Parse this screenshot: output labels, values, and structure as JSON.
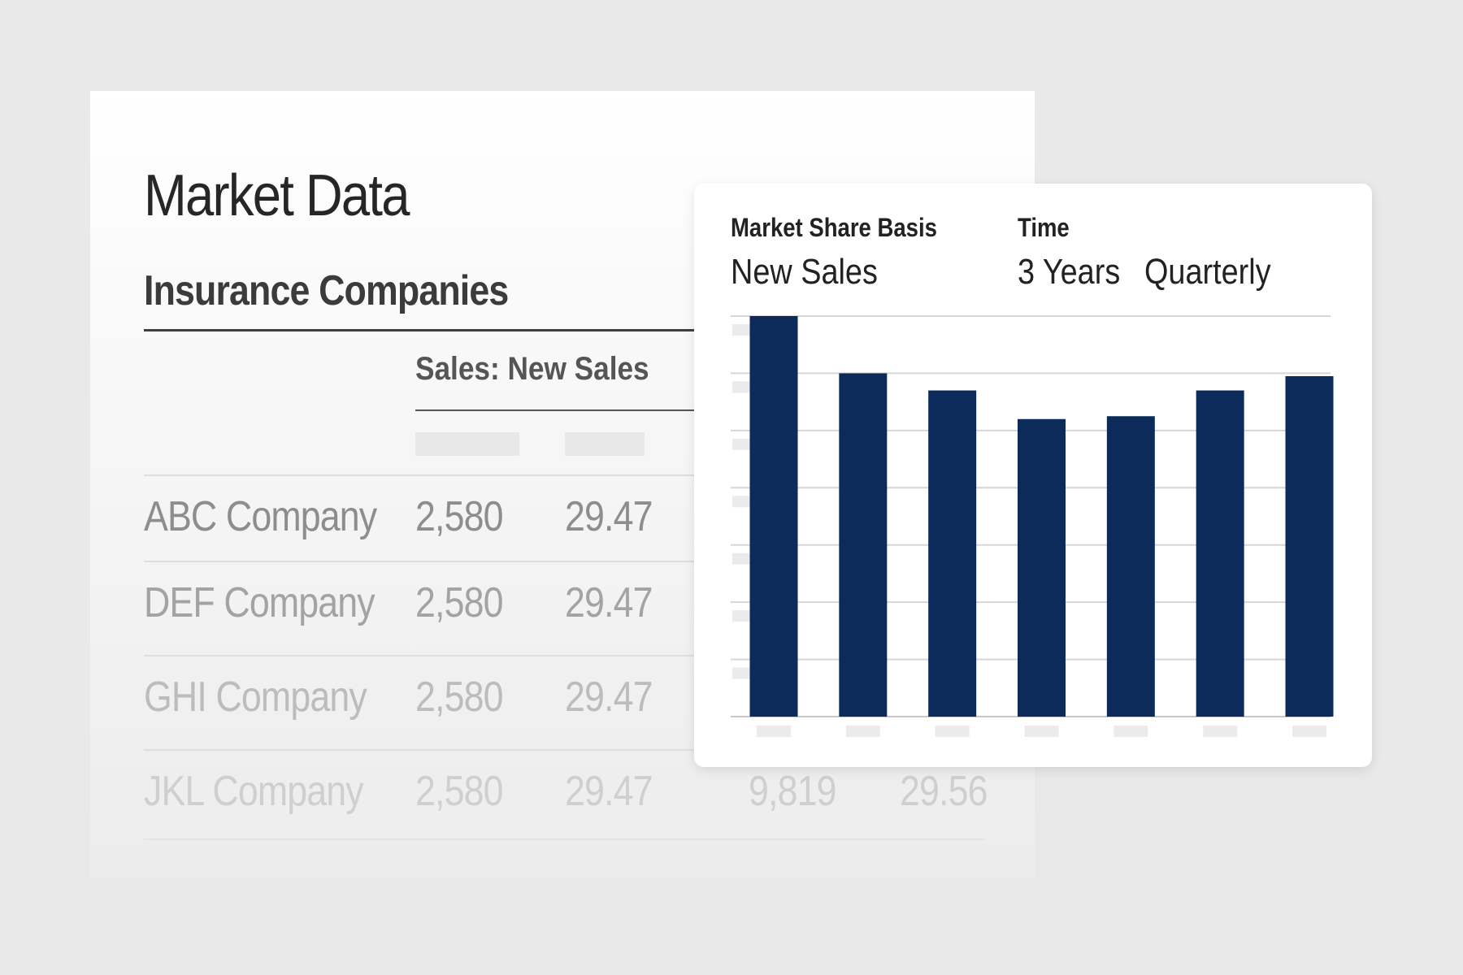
{
  "page": {
    "title": "Market Data",
    "section_title": "Insurance Companies",
    "column_group": "Sales: New Sales"
  },
  "table": {
    "rows": [
      {
        "company": "ABC Company",
        "v1": "2,580",
        "v2": "29.47"
      },
      {
        "company": "DEF Company",
        "v1": "2,580",
        "v2": "29.47"
      },
      {
        "company": "GHI Company",
        "v1": "2,580",
        "v2": "29.47"
      },
      {
        "company": "JKL Company",
        "v1": "2,580",
        "v2": "29.47",
        "v3": "9,819",
        "v4": "29.56"
      }
    ]
  },
  "chart_panel": {
    "basis_label": "Market Share Basis",
    "basis_value": "New Sales",
    "time_label": "Time",
    "time_value": "3 Years",
    "interval_value": "Quarterly"
  },
  "colors": {
    "bar": "#0c2b5b",
    "grid": "#d6d6d6",
    "placeholder": "#ebebeb"
  },
  "chart_data": {
    "type": "bar",
    "title": "",
    "xlabel": "",
    "ylabel": "",
    "categories": [
      "",
      "",
      "",
      "",
      "",
      "",
      ""
    ],
    "values": [
      7.0,
      6.0,
      5.7,
      5.2,
      5.25,
      5.7,
      5.95
    ],
    "ylim": [
      0,
      7
    ],
    "grid": true,
    "legend": "none"
  }
}
